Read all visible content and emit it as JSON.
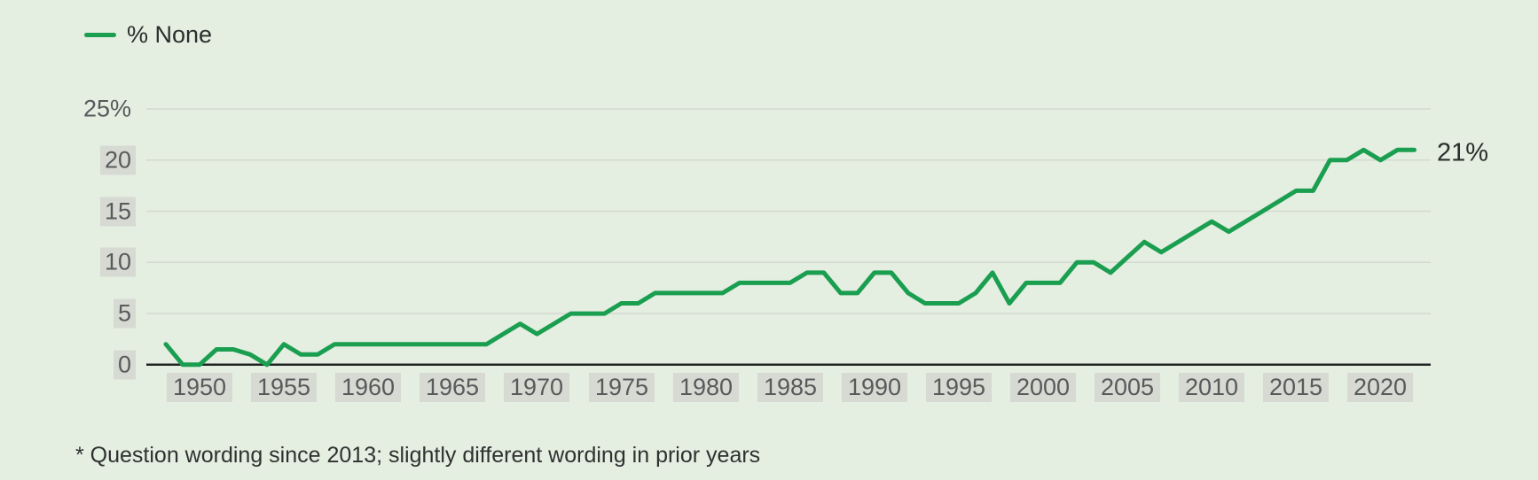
{
  "legend": {
    "label": "% None"
  },
  "footnote": "* Question wording since 2013; slightly different wording in prior years",
  "colors": {
    "background": "#e4eee1",
    "line": "#1a9e50",
    "gridline": "#d3d9d0",
    "axis": "#202423",
    "tick_label_bg": "#d7dad2",
    "tick_text": "#585a5c",
    "dark_text": "#2b2e2c"
  },
  "chart_data": {
    "type": "line",
    "title": "",
    "xlabel": "",
    "ylabel": "",
    "grid": "horizontal",
    "legend_position": "top-left",
    "xlim": [
      1948,
      2022
    ],
    "ylim": [
      0,
      25
    ],
    "x_ticks": [
      1950,
      1955,
      1960,
      1965,
      1970,
      1975,
      1980,
      1985,
      1990,
      1995,
      2000,
      2005,
      2010,
      2015,
      2020
    ],
    "y_ticks": [
      0,
      5,
      10,
      15,
      20,
      25
    ],
    "y_tick_labels": [
      "0",
      "5",
      "10",
      "15",
      "20",
      "25%"
    ],
    "end_label": "21%",
    "series": [
      {
        "name": "% None",
        "points": [
          [
            1948,
            2
          ],
          [
            1949,
            0
          ],
          [
            1950,
            0
          ],
          [
            1951,
            1.5
          ],
          [
            1952,
            1.5
          ],
          [
            1953,
            1
          ],
          [
            1954,
            0
          ],
          [
            1955,
            2
          ],
          [
            1956,
            1
          ],
          [
            1957,
            1
          ],
          [
            1958,
            2
          ],
          [
            1959,
            2
          ],
          [
            1960,
            2
          ],
          [
            1961,
            2
          ],
          [
            1962,
            2
          ],
          [
            1963,
            2
          ],
          [
            1964,
            2
          ],
          [
            1965,
            2
          ],
          [
            1966,
            2
          ],
          [
            1967,
            2
          ],
          [
            1968,
            3
          ],
          [
            1969,
            4
          ],
          [
            1970,
            3
          ],
          [
            1971,
            4
          ],
          [
            1972,
            5
          ],
          [
            1973,
            5
          ],
          [
            1974,
            5
          ],
          [
            1975,
            6
          ],
          [
            1976,
            6
          ],
          [
            1977,
            7
          ],
          [
            1978,
            7
          ],
          [
            1979,
            7
          ],
          [
            1980,
            7
          ],
          [
            1981,
            7
          ],
          [
            1982,
            8
          ],
          [
            1983,
            8
          ],
          [
            1984,
            8
          ],
          [
            1985,
            8
          ],
          [
            1986,
            9
          ],
          [
            1987,
            9
          ],
          [
            1988,
            7
          ],
          [
            1989,
            7
          ],
          [
            1990,
            9
          ],
          [
            1991,
            9
          ],
          [
            1992,
            7
          ],
          [
            1993,
            6
          ],
          [
            1994,
            6
          ],
          [
            1995,
            6
          ],
          [
            1996,
            7
          ],
          [
            1997,
            9
          ],
          [
            1998,
            6
          ],
          [
            1999,
            8
          ],
          [
            2000,
            8
          ],
          [
            2001,
            8
          ],
          [
            2002,
            10
          ],
          [
            2003,
            10
          ],
          [
            2004,
            9
          ],
          [
            2005,
            10.5
          ],
          [
            2006,
            12
          ],
          [
            2007,
            11
          ],
          [
            2008,
            12
          ],
          [
            2009,
            13
          ],
          [
            2010,
            14
          ],
          [
            2011,
            13
          ],
          [
            2012,
            14
          ],
          [
            2013,
            15
          ],
          [
            2014,
            16
          ],
          [
            2015,
            17
          ],
          [
            2016,
            17
          ],
          [
            2017,
            20
          ],
          [
            2018,
            20
          ],
          [
            2019,
            21
          ],
          [
            2020,
            20
          ],
          [
            2021,
            21
          ],
          [
            2022,
            21
          ]
        ]
      }
    ]
  }
}
